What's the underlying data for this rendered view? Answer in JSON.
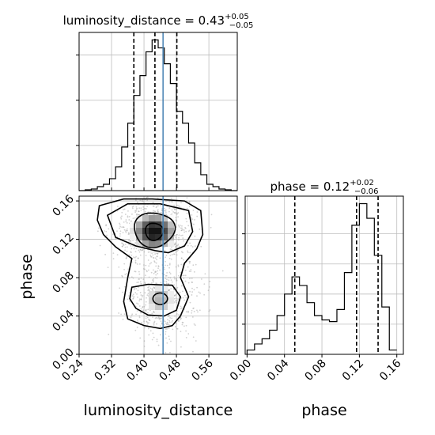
{
  "chart_data": [
    {
      "type": "histogram",
      "panel": "luminosity_distance marginal",
      "title": {
        "prefix": "luminosity_distance = 0.43",
        "sup": "+0.05",
        "sub": "−0.05"
      },
      "xlim": [
        0.24,
        0.63
      ],
      "bin_edges": [
        0.24,
        0.255,
        0.27,
        0.285,
        0.3,
        0.315,
        0.33,
        0.345,
        0.36,
        0.375,
        0.39,
        0.405,
        0.42,
        0.435,
        0.45,
        0.465,
        0.48,
        0.495,
        0.51,
        0.525,
        0.54,
        0.555,
        0.57,
        0.585,
        0.6,
        0.615,
        0.63
      ],
      "counts": [
        0,
        1,
        2,
        5,
        8,
        15,
        30,
        55,
        85,
        120,
        145,
        175,
        190,
        180,
        160,
        135,
        100,
        85,
        60,
        35,
        20,
        8,
        5,
        2,
        1,
        0
      ],
      "quantiles": [
        0.375,
        0.427,
        0.481
      ],
      "truth": 0.447,
      "grid": true
    },
    {
      "type": "histogram",
      "panel": "phase marginal",
      "title": {
        "prefix": "phase = 0.12",
        "sup": "+0.02",
        "sub": "−0.06"
      },
      "xlim": [
        -0.002,
        0.167
      ],
      "xlabel": "phase",
      "xticks": [
        "0.00",
        "0.04",
        "0.08",
        "0.12",
        "0.16"
      ],
      "bin_edges": [
        0.0,
        0.008,
        0.016,
        0.024,
        0.032,
        0.04,
        0.048,
        0.056,
        0.064,
        0.072,
        0.08,
        0.088,
        0.096,
        0.104,
        0.112,
        0.12,
        0.128,
        0.136,
        0.144,
        0.152,
        0.16
      ],
      "counts": [
        5,
        12,
        18,
        28,
        45,
        70,
        90,
        80,
        60,
        45,
        40,
        38,
        52,
        95,
        150,
        175,
        158,
        115,
        55,
        5
      ],
      "quantiles": [
        0.051,
        0.117,
        0.14
      ],
      "grid": true
    },
    {
      "type": "2d-histogram-contour",
      "panel": "luminosity_distance vs phase",
      "xlabel": "luminosity_distance",
      "ylabel": "phase",
      "xlim": [
        0.24,
        0.63
      ],
      "ylim": [
        0.0,
        0.165
      ],
      "xticks": [
        "0.24",
        "0.32",
        "0.40",
        "0.48",
        "0.56"
      ],
      "yticks": [
        "0.00",
        "0.04",
        "0.08",
        "0.12",
        "0.16"
      ],
      "truth_x": 0.447,
      "density_modes": [
        {
          "x": 0.425,
          "y": 0.128,
          "weight": 1.0
        },
        {
          "x": 0.44,
          "y": 0.057,
          "weight": 0.55
        }
      ],
      "contour_levels": 4,
      "grid": true
    }
  ]
}
